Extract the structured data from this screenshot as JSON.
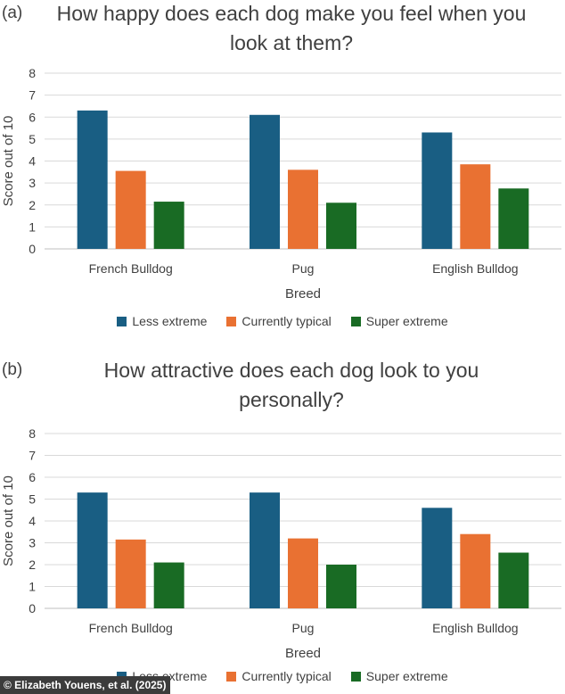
{
  "chart_data": [
    {
      "type": "bar",
      "panel_label": "(a)",
      "title_lines": [
        "How happy does each dog make you feel when you",
        "look at them?"
      ],
      "xlabel": "Breed",
      "ylabel": "Score out of 10",
      "ylim": [
        0,
        8
      ],
      "yticks": [
        "0",
        "1",
        "2",
        "3",
        "4",
        "5",
        "6",
        "7",
        "8"
      ],
      "categories": [
        "French Bulldog",
        "Pug",
        "English Bulldog"
      ],
      "series": [
        {
          "name": "Less extreme",
          "color": "#195e83",
          "values": [
            6.3,
            6.1,
            5.3
          ]
        },
        {
          "name": "Currently typical",
          "color": "#e97132",
          "values": [
            3.55,
            3.6,
            3.85
          ]
        },
        {
          "name": "Super extreme",
          "color": "#196b24",
          "values": [
            2.15,
            2.1,
            2.75
          ]
        }
      ],
      "legend": "bottom",
      "grid": true
    },
    {
      "type": "bar",
      "panel_label": "(b)",
      "title_lines": [
        "How attractive does each dog look to you",
        "personally?"
      ],
      "xlabel": "Breed",
      "ylabel": "Score out of 10",
      "ylim": [
        0,
        8
      ],
      "yticks": [
        "0",
        "1",
        "2",
        "3",
        "4",
        "5",
        "6",
        "7",
        "8"
      ],
      "categories": [
        "French Bulldog",
        "Pug",
        "English Bulldog"
      ],
      "series": [
        {
          "name": "Less extreme",
          "color": "#195e83",
          "values": [
            5.3,
            5.3,
            4.6
          ]
        },
        {
          "name": "Currently typical",
          "color": "#e97132",
          "values": [
            3.15,
            3.2,
            3.4
          ]
        },
        {
          "name": "Super extreme",
          "color": "#196b24",
          "values": [
            2.1,
            2.0,
            2.55
          ]
        }
      ],
      "legend": "bottom",
      "grid": true
    }
  ],
  "credit": "© Elizabeth Youens, et al. (2025)"
}
